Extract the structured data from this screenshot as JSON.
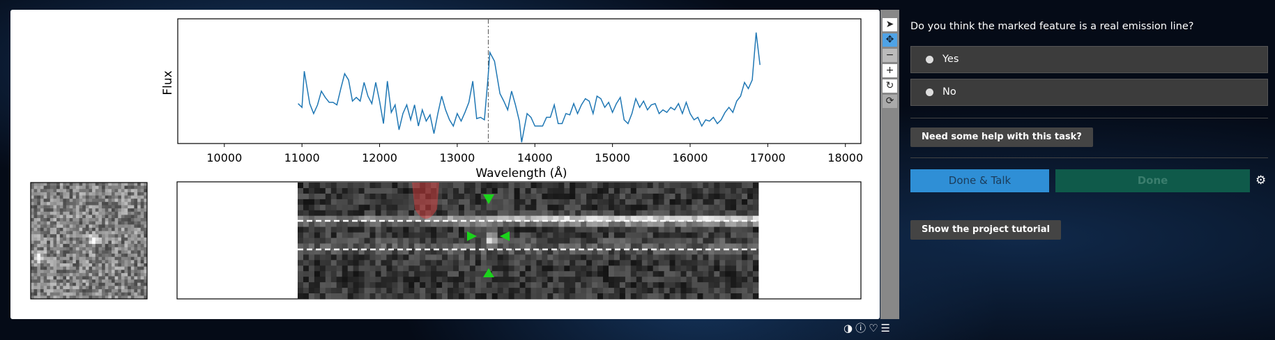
{
  "chart_data": {
    "type": "line",
    "xlabel": "Wavelength (Å)",
    "ylabel": "Flux",
    "xlim": [
      9400,
      18200
    ],
    "xticks": [
      10000,
      11000,
      12000,
      13000,
      14000,
      15000,
      16000,
      17000,
      18000
    ],
    "ylim": [
      0,
      100
    ],
    "color": "#1f77b4",
    "vline": 13400,
    "x": [
      10950,
      11000,
      11030,
      11100,
      11150,
      11200,
      11250,
      11300,
      11350,
      11400,
      11450,
      11500,
      11550,
      11600,
      11650,
      11700,
      11750,
      11800,
      11850,
      11900,
      11950,
      12000,
      12050,
      12100,
      12150,
      12200,
      12250,
      12300,
      12350,
      12400,
      12450,
      12500,
      12550,
      12600,
      12650,
      12700,
      12750,
      12800,
      12850,
      12900,
      12950,
      13000,
      13050,
      13100,
      13150,
      13200,
      13250,
      13300,
      13350,
      13400,
      13420,
      13480,
      13550,
      13600,
      13650,
      13700,
      13750,
      13800,
      13830,
      13900,
      13950,
      14000,
      14050,
      14100,
      14150,
      14200,
      14250,
      14300,
      14350,
      14400,
      14450,
      14500,
      14550,
      14600,
      14650,
      14700,
      14750,
      14800,
      14850,
      14900,
      14950,
      15000,
      15050,
      15100,
      15150,
      15200,
      15250,
      15300,
      15350,
      15400,
      15450,
      15500,
      15550,
      15600,
      15650,
      15700,
      15750,
      15800,
      15850,
      15900,
      15950,
      16000,
      16050,
      16100,
      16150,
      16200,
      16250,
      16300,
      16350,
      16400,
      16450,
      16500,
      16550,
      16600,
      16650,
      16700,
      16750,
      16800,
      16850,
      16900
    ],
    "values": [
      32,
      29,
      58,
      32,
      24,
      31,
      42,
      37,
      33,
      33,
      31,
      44,
      56,
      51,
      34,
      37,
      34,
      49,
      38,
      32,
      49,
      34,
      16,
      50,
      25,
      31,
      11,
      24,
      31,
      19,
      31,
      14,
      27,
      18,
      23,
      8,
      24,
      38,
      27,
      19,
      14,
      24,
      18,
      25,
      33,
      50,
      20,
      21,
      19,
      56,
      73,
      66,
      40,
      34,
      27,
      42,
      31,
      18,
      1,
      24,
      21,
      14,
      14,
      14,
      21,
      21,
      31,
      16,
      16,
      24,
      23,
      32,
      24,
      31,
      36,
      34,
      24,
      38,
      36,
      29,
      33,
      25,
      32,
      37,
      19,
      16,
      24,
      36,
      29,
      34,
      27,
      31,
      32,
      24,
      27,
      25,
      29,
      27,
      32,
      24,
      33,
      24,
      19,
      21,
      14,
      19,
      18,
      21,
      16,
      19,
      25,
      29,
      25,
      34,
      38,
      49,
      44,
      51,
      89,
      63
    ]
  },
  "task": {
    "question": "Do you think the marked feature is a real emission line?",
    "options": [
      "Yes",
      "No"
    ]
  },
  "buttons": {
    "help": "Need some help with this task?",
    "done_talk": "Done & Talk",
    "done": "Done",
    "tutorial": "Show the project tutorial"
  }
}
